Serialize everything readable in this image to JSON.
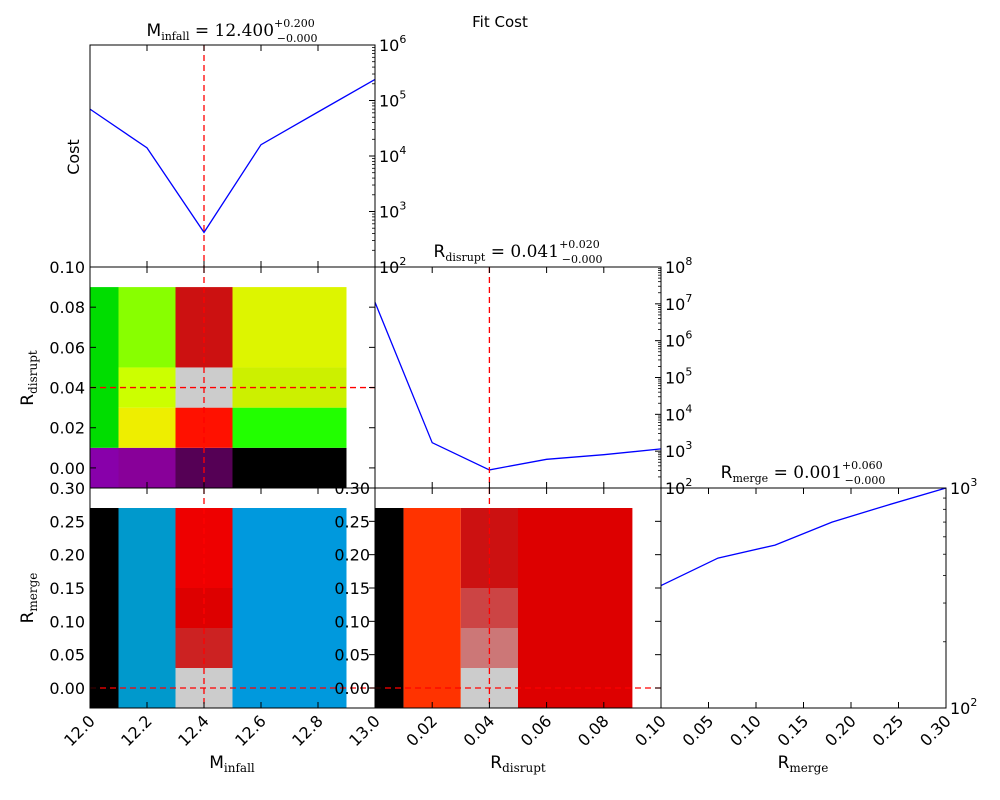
{
  "figure": {
    "title": "Fit Cost"
  },
  "chart_data": [
    {
      "id": "m_infall_cost",
      "type": "line",
      "title_prefix": "M",
      "title_sub": "infall",
      "title_eq": " = ",
      "title_val": "12.400",
      "title_sup": "+0.200",
      "title_low": "−0.000",
      "ylabel": "Cost",
      "yscale": "log",
      "ylim": [
        100,
        1000000
      ],
      "yticks": [
        {
          "text": "10",
          "sup": "2"
        },
        {
          "text": "10",
          "sup": "3"
        },
        {
          "text": "10",
          "sup": "4"
        },
        {
          "text": "10",
          "sup": "5"
        },
        {
          "text": "10",
          "sup": "6"
        }
      ],
      "xlim": [
        12.0,
        13.0
      ],
      "x": [
        12.0,
        12.2,
        12.4,
        12.6,
        12.8,
        13.0
      ],
      "y": [
        70000,
        14000,
        420,
        16000,
        62000,
        240000
      ],
      "color": "#0000ff",
      "marker_line": 12.4,
      "marker_color": "#ff0000"
    },
    {
      "id": "r_disrupt_cost",
      "type": "line",
      "title_prefix": "R",
      "title_sub": "disrupt",
      "title_eq": " = ",
      "title_val": "0.041",
      "title_sup": "+0.020",
      "title_low": "−0.000",
      "yscale": "log",
      "ylim": [
        100,
        100000000
      ],
      "yticks": [
        {
          "text": "10",
          "sup": "2"
        },
        {
          "text": "10",
          "sup": "3"
        },
        {
          "text": "10",
          "sup": "4"
        },
        {
          "text": "10",
          "sup": "5"
        },
        {
          "text": "10",
          "sup": "6"
        },
        {
          "text": "10",
          "sup": "7"
        },
        {
          "text": "10",
          "sup": "8"
        }
      ],
      "xlim": [
        0.0,
        0.1
      ],
      "x": [
        0.0,
        0.02,
        0.04,
        0.06,
        0.08,
        0.1
      ],
      "y": [
        11000000,
        1700,
        310,
        600,
        800,
        1150
      ],
      "color": "#0000ff",
      "marker_line": 0.04,
      "marker_color": "#ff0000"
    },
    {
      "id": "r_merge_cost",
      "type": "line",
      "title_prefix": "R",
      "title_sub": "merge",
      "title_eq": " = ",
      "title_val": "0.001",
      "title_sup": "+0.060",
      "title_low": "−0.000",
      "yscale": "log",
      "ylim": [
        100,
        1000
      ],
      "yticks": [
        {
          "text": "10",
          "sup": "2"
        },
        {
          "text": "10",
          "sup": "3"
        }
      ],
      "xlim": [
        0.0,
        0.3
      ],
      "x": [
        0.0,
        0.06,
        0.12,
        0.18,
        0.24,
        0.3
      ],
      "y": [
        360,
        480,
        550,
        700,
        840,
        1000
      ],
      "color": "#0000ff"
    },
    {
      "id": "m_infall_vs_r_disrupt",
      "type": "heatmap",
      "ylabel_prefix": "R",
      "ylabel_sub": "disrupt",
      "xlim": [
        12.0,
        13.0
      ],
      "ylim": [
        -0.01,
        0.1
      ],
      "yticks": [
        "0.00",
        "0.02",
        "0.04",
        "0.06",
        "0.08",
        "0.10"
      ],
      "cells": [
        {
          "x0": 12.0,
          "x1": 12.1,
          "y0": -0.01,
          "y1": 0.01,
          "color": "#8800aa"
        },
        {
          "x0": 12.1,
          "x1": 12.3,
          "y0": -0.01,
          "y1": 0.01,
          "color": "#880099"
        },
        {
          "x0": 12.3,
          "x1": 12.5,
          "y0": -0.01,
          "y1": 0.01,
          "color": "#550055"
        },
        {
          "x0": 12.5,
          "x1": 12.9,
          "y0": -0.01,
          "y1": 0.01,
          "color": "#000000"
        },
        {
          "x0": 12.0,
          "x1": 12.1,
          "y0": 0.01,
          "y1": 0.09,
          "color": "#00dd00"
        },
        {
          "x0": 12.1,
          "x1": 12.3,
          "y0": 0.01,
          "y1": 0.03,
          "color": "#eeee00"
        },
        {
          "x0": 12.3,
          "x1": 12.5,
          "y0": 0.01,
          "y1": 0.03,
          "color": "#ff1100"
        },
        {
          "x0": 12.5,
          "x1": 12.9,
          "y0": 0.01,
          "y1": 0.03,
          "color": "#22ff00"
        },
        {
          "x0": 12.1,
          "x1": 12.3,
          "y0": 0.03,
          "y1": 0.05,
          "color": "#ccff00"
        },
        {
          "x0": 12.3,
          "x1": 12.5,
          "y0": 0.03,
          "y1": 0.05,
          "color": "#cccccc"
        },
        {
          "x0": 12.5,
          "x1": 12.9,
          "y0": 0.03,
          "y1": 0.05,
          "color": "#ccf000"
        },
        {
          "x0": 12.1,
          "x1": 12.3,
          "y0": 0.05,
          "y1": 0.09,
          "color": "#88ff00"
        },
        {
          "x0": 12.3,
          "x1": 12.5,
          "y0": 0.05,
          "y1": 0.09,
          "color": "#cc1111"
        },
        {
          "x0": 12.5,
          "x1": 12.9,
          "y0": 0.05,
          "y1": 0.09,
          "color": "#ddf500"
        }
      ],
      "marker_x": 12.4,
      "marker_y": 0.04,
      "marker_color": "#ff0000"
    },
    {
      "id": "m_infall_vs_r_merge",
      "type": "heatmap",
      "ylabel_prefix": "R",
      "ylabel_sub": "merge",
      "xlabel_prefix": "M",
      "xlabel_sub": "infall",
      "xlim": [
        12.0,
        13.0
      ],
      "ylim": [
        -0.03,
        0.3
      ],
      "xticks": [
        "12.0",
        "12.2",
        "12.4",
        "12.6",
        "12.8",
        "13.0"
      ],
      "yticks": [
        "0.00",
        "0.05",
        "0.10",
        "0.15",
        "0.20",
        "0.25",
        "0.30"
      ],
      "cells": [
        {
          "x0": 12.0,
          "x1": 12.1,
          "y0": -0.03,
          "y1": 0.27,
          "color": "#000000"
        },
        {
          "x0": 12.1,
          "x1": 12.3,
          "y0": -0.03,
          "y1": 0.27,
          "color": "#0099cc"
        },
        {
          "x0": 12.3,
          "x1": 12.5,
          "y0": -0.03,
          "y1": 0.03,
          "color": "#cccccc"
        },
        {
          "x0": 12.3,
          "x1": 12.5,
          "y0": 0.03,
          "y1": 0.09,
          "color": "#cc2222"
        },
        {
          "x0": 12.3,
          "x1": 12.5,
          "y0": 0.09,
          "y1": 0.15,
          "color": "#dd0000"
        },
        {
          "x0": 12.3,
          "x1": 12.5,
          "y0": 0.15,
          "y1": 0.27,
          "color": "#ee0000"
        },
        {
          "x0": 12.5,
          "x1": 12.9,
          "y0": -0.03,
          "y1": 0.27,
          "color": "#0099dd"
        }
      ],
      "marker_x": 12.4,
      "marker_y": 0.0,
      "marker_color": "#ff0000"
    },
    {
      "id": "r_disrupt_vs_r_merge",
      "type": "heatmap",
      "xlabel_prefix": "R",
      "xlabel_sub": "disrupt",
      "xlim": [
        0.0,
        0.1
      ],
      "ylim": [
        -0.03,
        0.3
      ],
      "xticks": [
        "0.02",
        "0.04",
        "0.06",
        "0.08",
        "0.10"
      ],
      "yticks": [
        "0.00",
        "0.05",
        "0.10",
        "0.15",
        "0.20",
        "0.25",
        "0.30"
      ],
      "cells": [
        {
          "x0": 0.0,
          "x1": 0.01,
          "y0": -0.03,
          "y1": 0.27,
          "color": "#000000"
        },
        {
          "x0": 0.01,
          "x1": 0.03,
          "y0": -0.03,
          "y1": 0.27,
          "color": "#ff3300"
        },
        {
          "x0": 0.03,
          "x1": 0.05,
          "y0": -0.03,
          "y1": 0.03,
          "color": "#cccccc"
        },
        {
          "x0": 0.03,
          "x1": 0.05,
          "y0": 0.03,
          "y1": 0.09,
          "color": "#cc7777"
        },
        {
          "x0": 0.03,
          "x1": 0.05,
          "y0": 0.09,
          "y1": 0.15,
          "color": "#cc4444"
        },
        {
          "x0": 0.03,
          "x1": 0.05,
          "y0": 0.15,
          "y1": 0.27,
          "color": "#cc1111"
        },
        {
          "x0": 0.05,
          "x1": 0.09,
          "y0": -0.03,
          "y1": 0.27,
          "color": "#dd0000"
        }
      ],
      "marker_x": 0.04,
      "marker_y": 0.0,
      "marker_color": "#ff0000"
    },
    {
      "id": "r_merge_xaxis",
      "type": "line",
      "xlabel_prefix": "R",
      "xlabel_sub": "merge",
      "xticks": [
        "0.05",
        "0.10",
        "0.15",
        "0.20",
        "0.25",
        "0.30"
      ]
    }
  ]
}
